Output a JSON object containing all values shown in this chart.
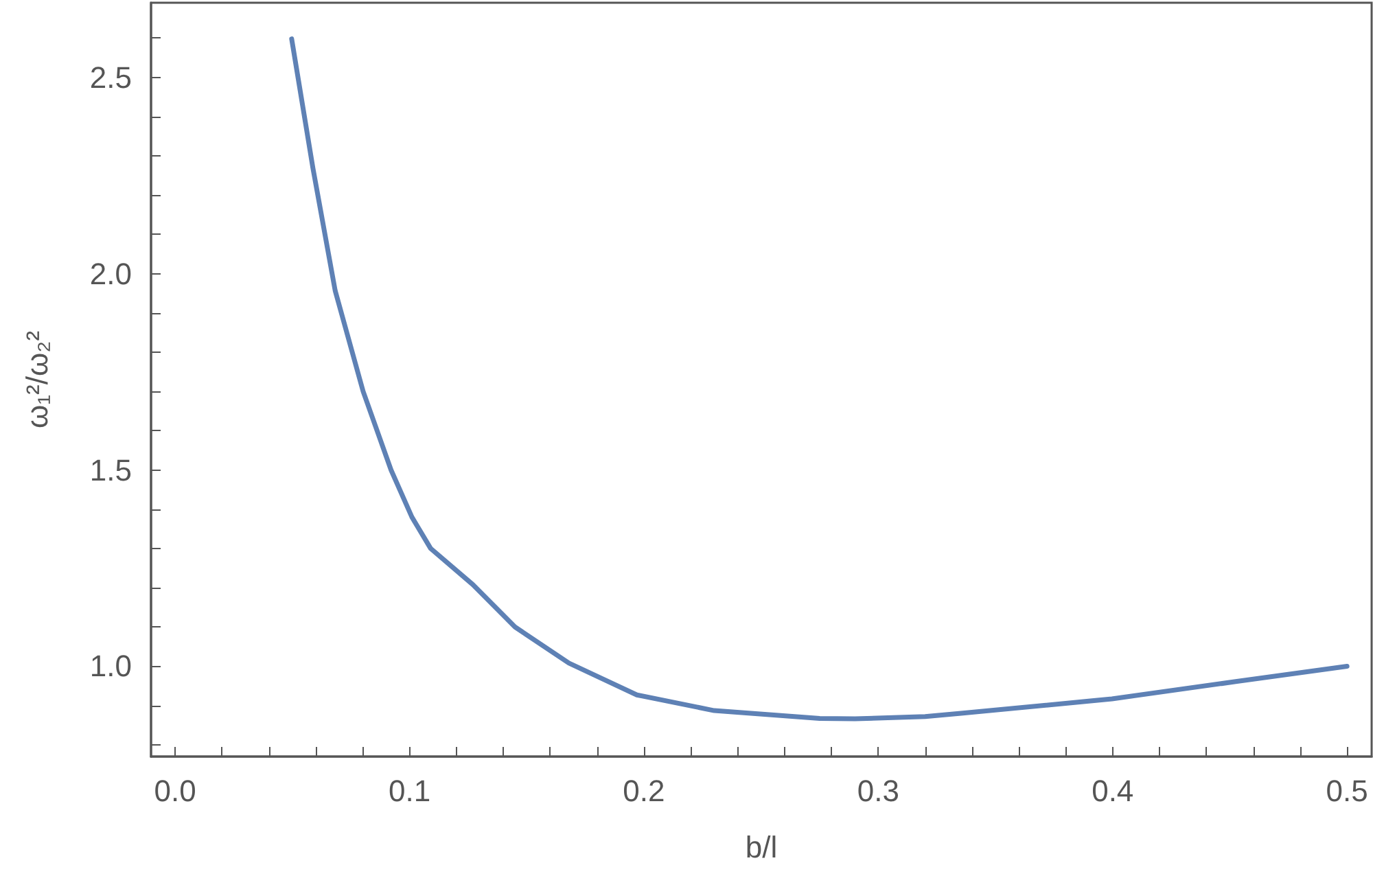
{
  "chart_data": {
    "type": "line",
    "xlabel": "b/l",
    "ylabel": "ω₁²/ω₂²",
    "series": [
      {
        "color": "#5e81b5",
        "x": [
          0.0497,
          0.0588,
          0.0683,
          0.0802,
          0.0921,
          0.101,
          0.109,
          0.127,
          0.145,
          0.168,
          0.197,
          0.23,
          0.275,
          0.29,
          0.32,
          0.3353,
          0.3997,
          0.4525,
          0.5
        ],
        "values": [
          2.598,
          2.268,
          1.956,
          1.7,
          1.5,
          1.38,
          1.3,
          1.208,
          1.1,
          1.008,
          0.927,
          0.887,
          0.867,
          0.866,
          0.872,
          0.88,
          0.917,
          0.961,
          1.0
        ]
      }
    ],
    "xlim": [
      -0.0103,
      0.5105
    ],
    "ylim": [
      0.77,
      2.69
    ],
    "xticks": [
      {
        "value": 0,
        "label": "0.0"
      },
      {
        "value": 0.02,
        "label": null
      },
      {
        "value": 0.04,
        "label": null
      },
      {
        "value": 0.06,
        "label": null
      },
      {
        "value": 0.08,
        "label": null
      },
      0.1,
      {
        "value": 0.12,
        "label": null
      },
      {
        "value": 0.14,
        "label": null
      },
      {
        "value": 0.16,
        "label": null
      },
      {
        "value": 0.18,
        "label": null
      },
      0.2,
      {
        "value": 0.22,
        "label": null
      },
      {
        "value": 0.24,
        "label": null
      },
      {
        "value": 0.26,
        "label": null
      },
      {
        "value": 0.28,
        "label": null
      },
      0.3,
      {
        "value": 0.32,
        "label": null
      },
      {
        "value": 0.34,
        "label": null
      },
      {
        "value": 0.36,
        "label": null
      },
      {
        "value": 0.38,
        "label": null
      },
      0.4,
      {
        "value": 0.42,
        "label": null
      },
      {
        "value": 0.44,
        "label": null
      },
      {
        "value": 0.46,
        "label": null
      },
      {
        "value": 0.48,
        "label": null
      },
      0.5
    ],
    "yticks": [
      {
        "value": 0.8,
        "label": null
      },
      {
        "value": 0.9,
        "label": null
      },
      {
        "value": 1,
        "label": "1.0"
      },
      {
        "value": 1.1,
        "label": null
      },
      {
        "value": 1.2,
        "label": null
      },
      {
        "value": 1.3,
        "label": null
      },
      {
        "value": 1.4,
        "label": null
      },
      1.5,
      {
        "value": 1.6,
        "label": null
      },
      {
        "value": 1.7,
        "label": null
      },
      {
        "value": 1.8,
        "label": null
      },
      {
        "value": 1.9,
        "label": null
      },
      {
        "value": 2,
        "label": "2.0"
      },
      {
        "value": 2.1,
        "label": null
      },
      {
        "value": 2.2,
        "label": null
      },
      {
        "value": 2.3,
        "label": null
      },
      {
        "value": 2.4,
        "label": null
      },
      2.5,
      {
        "value": 2.6,
        "label": null
      }
    ],
    "marker": "none",
    "line_style": "solid"
  }
}
